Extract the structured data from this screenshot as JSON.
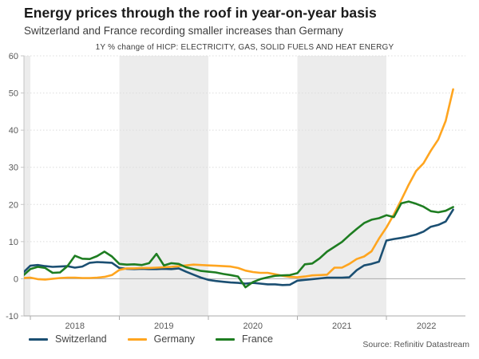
{
  "header": {
    "title": "Energy prices through the roof in year-on-year basis",
    "subtitle": "Switzerland and France recording smaller increases than Germany"
  },
  "chart": {
    "note": "1Y % change of HICP: ELECTRICITY, GAS, SOLID FUELS AND HEAT ENERGY"
  },
  "footer": {
    "source": "Source: Refinitiv Datastream"
  },
  "colors": {
    "switzerland": "#1b4f72",
    "germany": "#ffa51f",
    "france": "#1e7d21",
    "band": "#ececec",
    "grid": "#dcdcdc",
    "zero_line": "#ababab",
    "axis_line": "#c5c5c5",
    "tick_label": "#595959"
  },
  "chart_data": {
    "type": "line",
    "title": "1Y % change of HICP: ELECTRICITY, GAS, SOLID FUELS AND HEAT ENERGY",
    "x_unit": "decimal_year_monthly",
    "x_start_label": "2017-12",
    "x_end_label": "2022-10",
    "x_start": 2017.9167,
    "x_step": 0.0833333,
    "xlim": [
      2017.928,
      2022.888
    ],
    "ylim": [
      -10,
      60
    ],
    "yticks": [
      -10,
      0,
      10,
      20,
      30,
      40,
      50,
      60
    ],
    "xticks": [
      2018,
      2019,
      2020,
      2021,
      2022
    ],
    "xtick_labels": [
      {
        "label": "2018",
        "pos": 2018.5
      },
      {
        "label": "2019",
        "pos": 2019.5
      },
      {
        "label": "2020",
        "pos": 2020.5
      },
      {
        "label": "2021",
        "pos": 2021.5
      },
      {
        "label": "2022",
        "pos": 2022.45
      }
    ],
    "bands": [
      [
        2017.928,
        2018.0
      ],
      [
        2019.0,
        2020.0
      ],
      [
        2021.0,
        2022.0
      ]
    ],
    "zero_line": true,
    "grid": "dotted-horizontal",
    "legend_position": "bottom-left",
    "layout": {
      "plot": [
        30,
        70,
        583,
        396
      ]
    },
    "series": [
      {
        "name": "Switzerland",
        "color": "#1b4f72",
        "values": [
          1.6,
          3.5,
          3.7,
          3.4,
          3.2,
          3.3,
          3.4,
          3.0,
          3.3,
          4.3,
          4.5,
          4.4,
          4.3,
          2.9,
          2.7,
          2.6,
          2.7,
          2.6,
          2.6,
          2.7,
          2.6,
          2.8,
          1.9,
          1.1,
          0.3,
          -0.3,
          -0.6,
          -0.8,
          -1.0,
          -1.1,
          -1.3,
          -1.1,
          -1.3,
          -1.5,
          -1.5,
          -1.7,
          -1.6,
          -0.5,
          -0.3,
          -0.1,
          0.1,
          0.3,
          0.3,
          0.3,
          0.4,
          2.3,
          3.6,
          4.0,
          4.6,
          10.3,
          10.7,
          11.0,
          11.4,
          11.9,
          12.7,
          14.0,
          14.5,
          15.4,
          18.6
        ]
      },
      {
        "name": "Germany",
        "color": "#ffa51f",
        "values": [
          0.2,
          0.3,
          -0.1,
          -0.2,
          0.0,
          0.2,
          0.3,
          0.3,
          0.2,
          0.2,
          0.3,
          0.5,
          1.0,
          2.4,
          2.8,
          2.8,
          2.9,
          2.9,
          3.0,
          3.1,
          3.2,
          3.4,
          3.6,
          3.8,
          3.7,
          3.6,
          3.5,
          3.4,
          3.3,
          2.9,
          2.2,
          1.8,
          1.6,
          1.6,
          1.2,
          0.8,
          0.5,
          0.4,
          0.6,
          0.9,
          1.0,
          1.1,
          3.0,
          3.0,
          4.0,
          5.3,
          6.0,
          7.4,
          10.8,
          13.8,
          17.3,
          21.2,
          25.3,
          29.0,
          31.1,
          34.5,
          37.5,
          42.5,
          51.0
        ]
      },
      {
        "name": "France",
        "color": "#1e7d21",
        "values": [
          0.8,
          2.6,
          3.2,
          2.9,
          1.6,
          1.7,
          3.4,
          6.2,
          5.4,
          5.3,
          6.1,
          7.3,
          6.0,
          4.0,
          3.8,
          3.9,
          3.7,
          4.2,
          6.7,
          3.6,
          4.2,
          4.0,
          3.1,
          2.6,
          2.1,
          1.9,
          1.7,
          1.3,
          1.0,
          0.6,
          -2.3,
          -0.9,
          -0.1,
          0.4,
          0.8,
          0.9,
          1.0,
          1.5,
          3.9,
          4.1,
          5.5,
          7.3,
          8.6,
          9.9,
          11.7,
          13.4,
          15.0,
          15.9,
          16.3,
          17.1,
          16.6,
          20.3,
          20.8,
          20.2,
          19.4,
          18.2,
          17.9,
          18.3,
          19.3
        ]
      }
    ]
  }
}
